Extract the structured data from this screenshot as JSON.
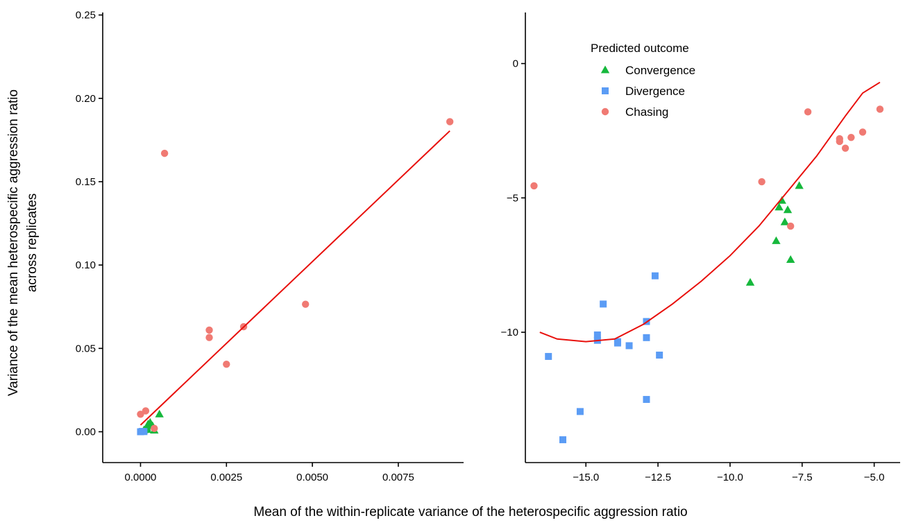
{
  "figure": {
    "xlabel": "Mean of the within-replicate variance of the heterospecific aggression ratio",
    "ylabel_lines": [
      "Variance of the mean heterospecific aggression ratio",
      "across replicates"
    ]
  },
  "legend": {
    "title": "Predicted outcome",
    "items": [
      {
        "label": "Convergence",
        "shape": "triangle",
        "color": "#16b83c"
      },
      {
        "label": "Divergence",
        "shape": "square",
        "color": "#5b9cf5"
      },
      {
        "label": "Chasing",
        "shape": "circle",
        "color": "#f07a73"
      }
    ]
  },
  "chart_data": [
    {
      "type": "scatter",
      "xlim": [
        -0.0011,
        0.0094
      ],
      "ylim": [
        -0.0185,
        0.2515
      ],
      "xticks": [
        0.0,
        0.0025,
        0.005,
        0.0075
      ],
      "xtick_labels": [
        "0.0000",
        "0.0025",
        "0.0050",
        "0.0075"
      ],
      "yticks": [
        0.0,
        0.05,
        0.1,
        0.15,
        0.2,
        0.25
      ],
      "ytick_labels": [
        "0.00",
        "0.05",
        "0.10",
        "0.15",
        "0.20",
        "0.25"
      ],
      "series": [
        {
          "name": "Convergence",
          "color": "#16b83c",
          "shape": "triangle",
          "points": [
            [
              0.00055,
              0.0105
            ],
            [
              0.00028,
              0.0055
            ],
            [
              0.00022,
              0.0045
            ],
            [
              0.00035,
              0.0035
            ],
            [
              0.00018,
              0.0025
            ],
            [
              0.0001,
              0.001
            ],
            [
              0.0004,
              0.0008
            ],
            [
              0.0002,
              0.0012
            ]
          ]
        },
        {
          "name": "Divergence",
          "color": "#5b9cf5",
          "shape": "square",
          "points": [
            [
              0.0,
              0.0
            ],
            [
              5e-05,
              0.0002
            ],
            [
              0.0001,
              0.0001
            ]
          ]
        },
        {
          "name": "Chasing",
          "color": "#f07a73",
          "shape": "circle",
          "points": [
            [
              0.0,
              0.0105
            ],
            [
              0.00015,
              0.0125
            ],
            [
              0.0004,
              0.002
            ],
            [
              0.0007,
              0.167
            ],
            [
              0.002,
              0.061
            ],
            [
              0.002,
              0.0565
            ],
            [
              0.0025,
              0.0405
            ],
            [
              0.003,
              0.063
            ],
            [
              0.0048,
              0.0765
            ],
            [
              0.009,
              0.186
            ]
          ]
        }
      ],
      "fit_line": {
        "color": "#e8100c",
        "points": [
          [
            0.0,
            0.004
          ],
          [
            0.009,
            0.1805
          ]
        ]
      }
    },
    {
      "type": "scatter",
      "xlim": [
        -17.1,
        -4.1
      ],
      "ylim": [
        -14.85,
        1.9
      ],
      "xticks": [
        -15.0,
        -12.5,
        -10.0,
        -7.5,
        -5.0
      ],
      "xtick_labels": [
        "−15.0",
        "−12.5",
        "−10.0",
        "−7.5",
        "−5.0"
      ],
      "yticks": [
        0,
        -5,
        -10
      ],
      "ytick_labels": [
        "0",
        "−5",
        "−10"
      ],
      "series": [
        {
          "name": "Convergence",
          "color": "#16b83c",
          "shape": "triangle",
          "points": [
            [
              -7.6,
              -4.55
            ],
            [
              -8.2,
              -5.1
            ],
            [
              -8.3,
              -5.35
            ],
            [
              -8.0,
              -5.45
            ],
            [
              -8.1,
              -5.9
            ],
            [
              -8.4,
              -6.6
            ],
            [
              -7.9,
              -7.3
            ],
            [
              -9.3,
              -8.15
            ]
          ]
        },
        {
          "name": "Divergence",
          "color": "#5b9cf5",
          "shape": "square",
          "points": [
            [
              -12.6,
              -7.9
            ],
            [
              -14.4,
              -8.95
            ],
            [
              -12.9,
              -9.6
            ],
            [
              -14.6,
              -10.1
            ],
            [
              -14.6,
              -10.3
            ],
            [
              -13.9,
              -10.35
            ],
            [
              -13.9,
              -10.4
            ],
            [
              -13.5,
              -10.5
            ],
            [
              -12.9,
              -10.2
            ],
            [
              -12.45,
              -10.85
            ],
            [
              -16.3,
              -10.9
            ],
            [
              -12.9,
              -12.5
            ],
            [
              -15.2,
              -12.95
            ],
            [
              -15.8,
              -14.0
            ]
          ]
        },
        {
          "name": "Chasing",
          "color": "#f07a73",
          "shape": "circle",
          "points": [
            [
              -16.8,
              -4.55
            ],
            [
              -8.9,
              -4.4
            ],
            [
              -7.3,
              -1.8
            ],
            [
              -4.8,
              -1.7
            ],
            [
              -6.2,
              -2.8
            ],
            [
              -6.2,
              -2.9
            ],
            [
              -5.8,
              -2.75
            ],
            [
              -5.4,
              -2.55
            ],
            [
              -6.0,
              -3.15
            ],
            [
              -7.9,
              -6.05
            ]
          ]
        }
      ],
      "fit_line": {
        "color": "#e8100c",
        "points": [
          [
            -16.6,
            -10.0
          ],
          [
            -16.0,
            -10.25
          ],
          [
            -15.0,
            -10.35
          ],
          [
            -14.0,
            -10.25
          ],
          [
            -13.0,
            -9.7
          ],
          [
            -12.0,
            -8.95
          ],
          [
            -11.0,
            -8.1
          ],
          [
            -10.0,
            -7.15
          ],
          [
            -9.0,
            -6.05
          ],
          [
            -8.0,
            -4.75
          ],
          [
            -7.0,
            -3.45
          ],
          [
            -6.0,
            -1.95
          ],
          [
            -5.4,
            -1.1
          ],
          [
            -4.8,
            -0.7
          ]
        ]
      }
    }
  ]
}
